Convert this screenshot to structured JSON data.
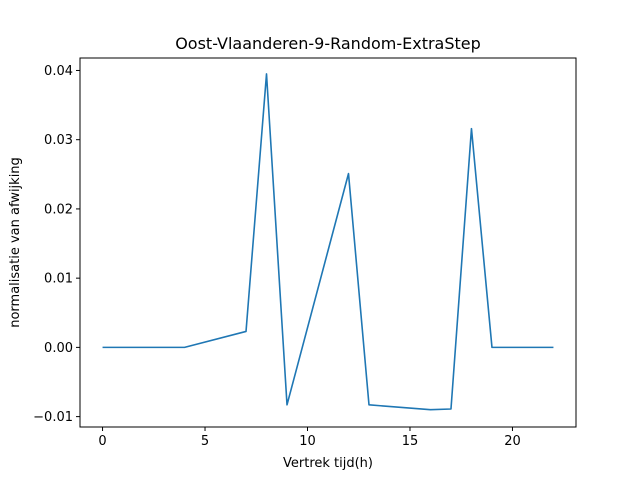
{
  "chart_data": {
    "type": "line",
    "title": "Oost-Vlaanderen-9-Random-ExtraStep",
    "xlabel": "Vertrek tijd(h)",
    "ylabel": "normalisatie van afwijking",
    "xlim": [
      -1.1,
      23.1
    ],
    "ylim": [
      -0.0115,
      0.0418
    ],
    "xticks": [
      0,
      5,
      10,
      15,
      20
    ],
    "xtick_labels": [
      "0",
      "5",
      "10",
      "15",
      "20"
    ],
    "yticks": [
      -0.01,
      0.0,
      0.01,
      0.02,
      0.03,
      0.04
    ],
    "ytick_labels": [
      "−0.01",
      "0.00",
      "0.01",
      "0.02",
      "0.03",
      "0.04"
    ],
    "grid": false,
    "series": [
      {
        "color": "#1f77b4",
        "x": [
          0,
          4,
          7,
          8,
          9,
          12,
          13,
          16,
          17,
          18,
          19,
          22
        ],
        "y": [
          0.0,
          0.0,
          0.0023,
          0.0395,
          -0.0083,
          0.0251,
          -0.0083,
          -0.009,
          -0.0089,
          0.0316,
          0.0,
          0.0
        ]
      }
    ]
  }
}
